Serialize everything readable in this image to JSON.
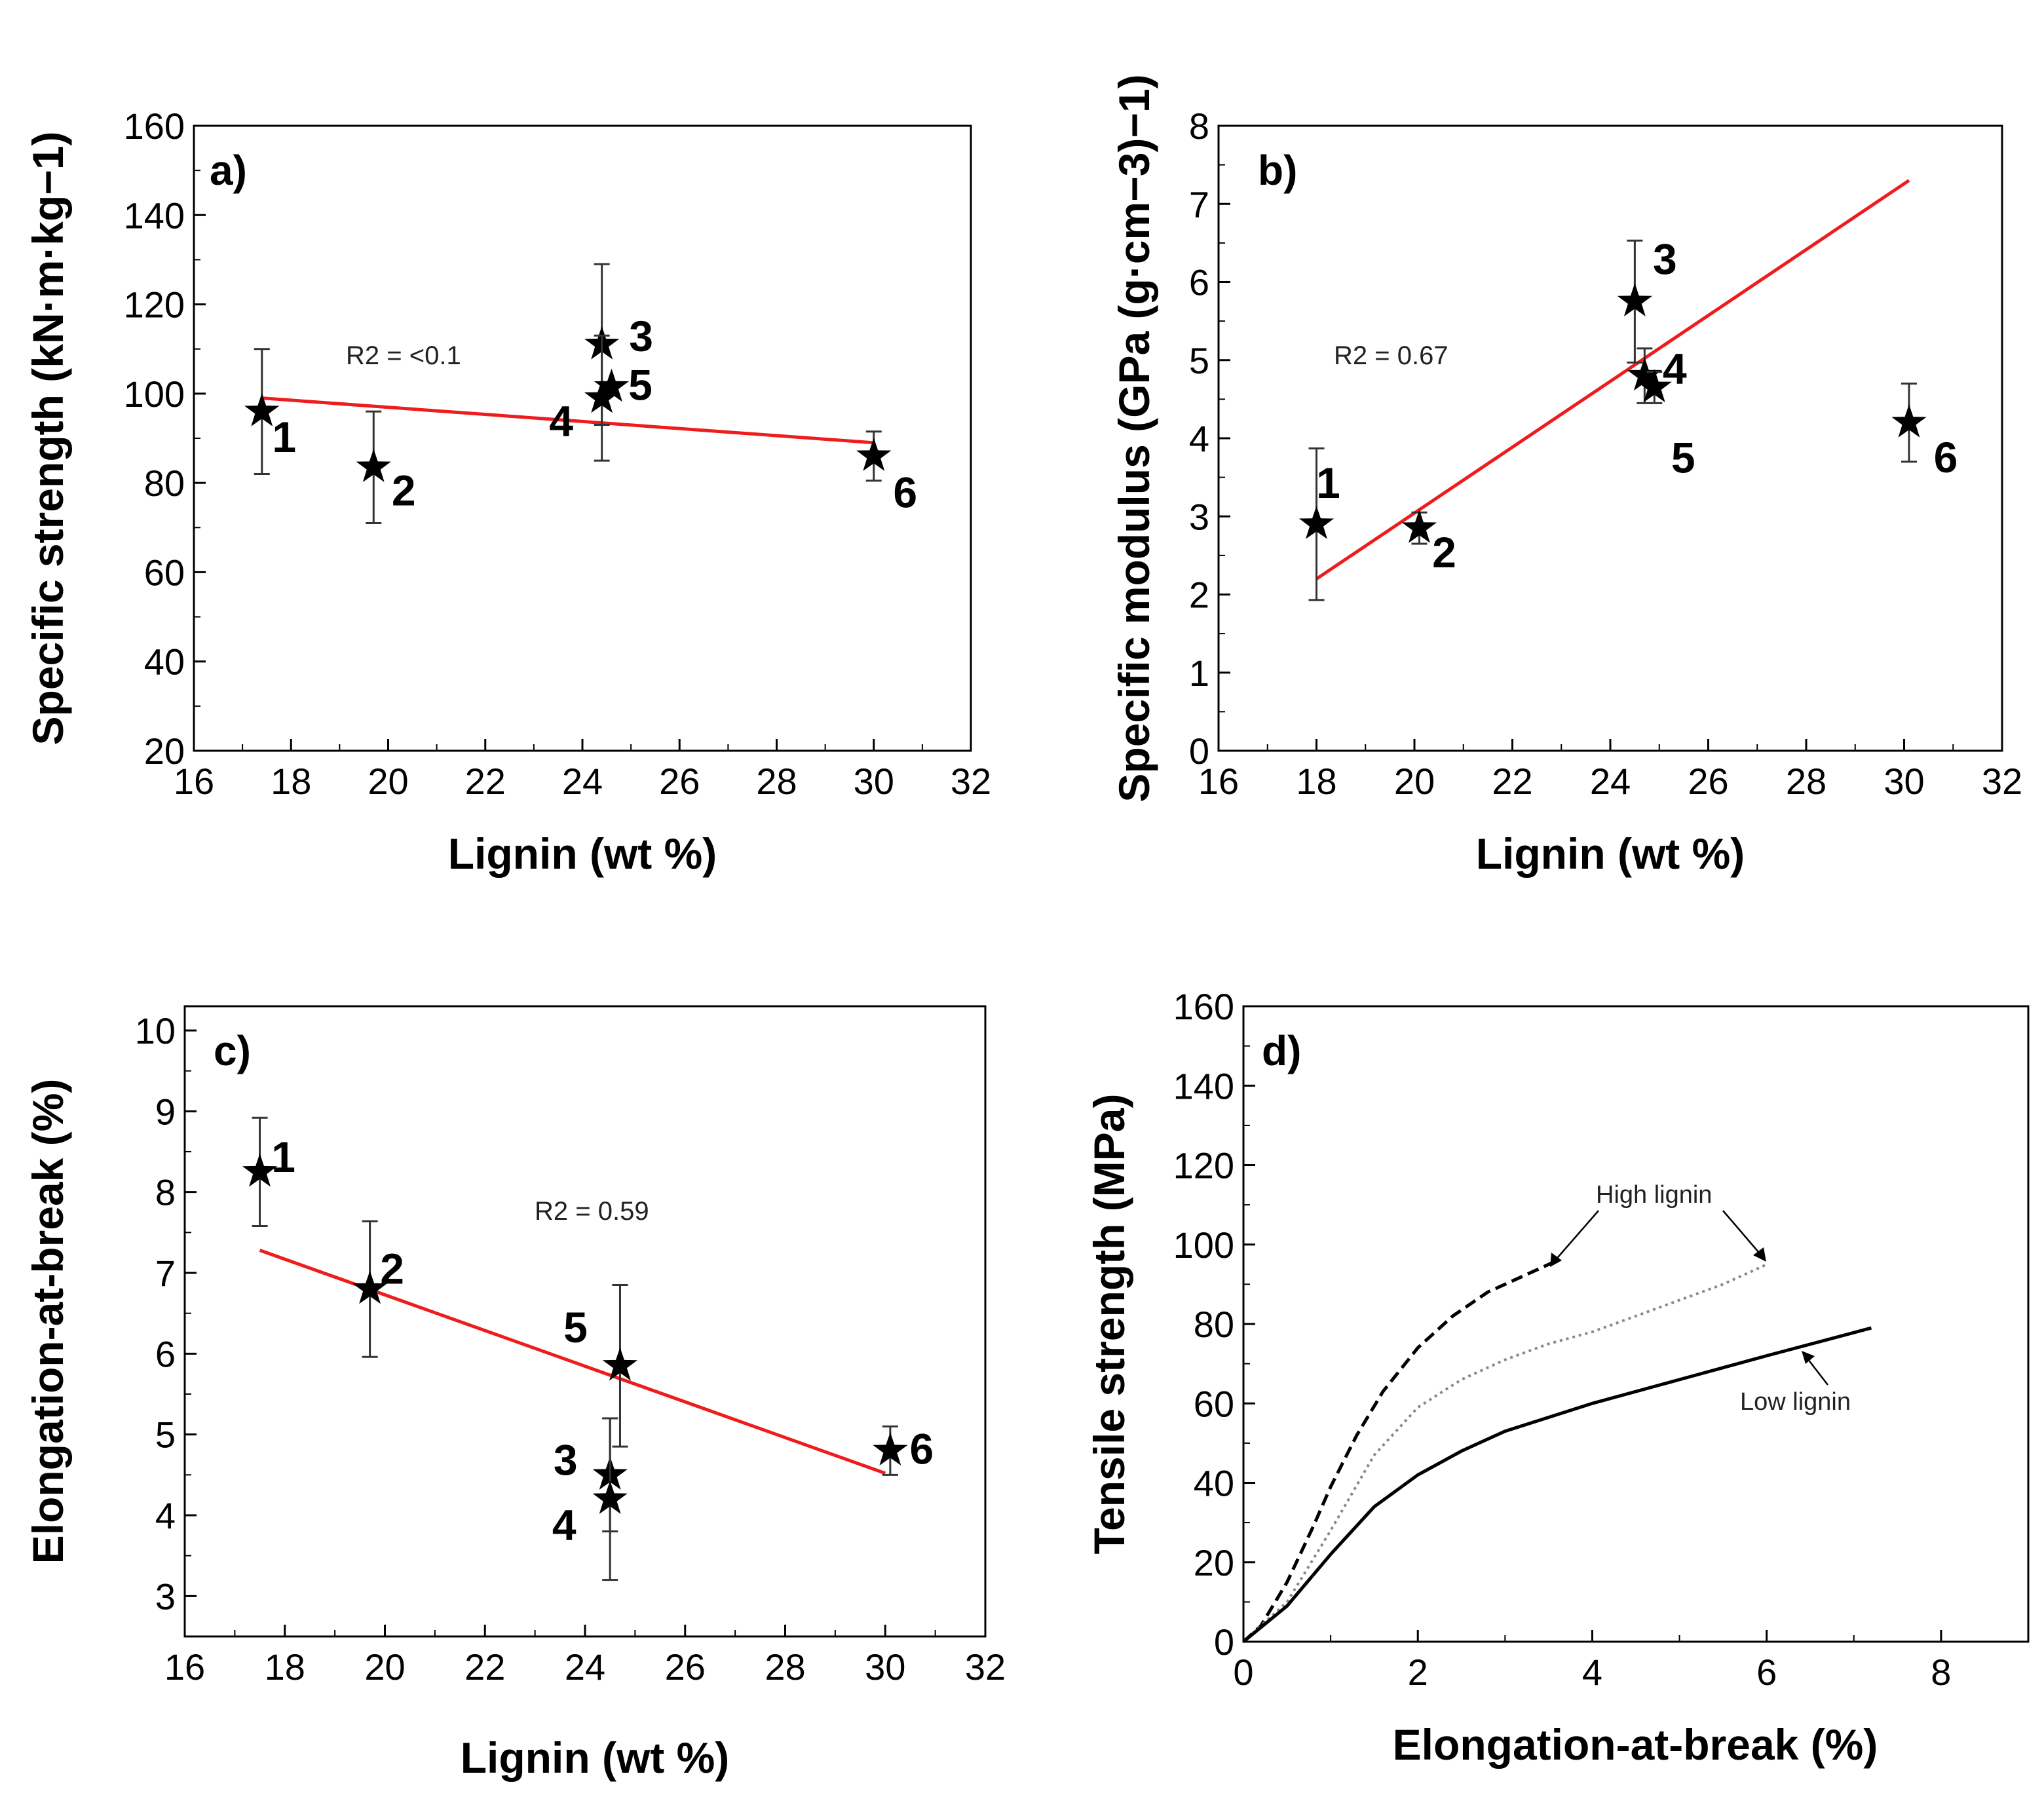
{
  "chart_data": [
    {
      "panel": "a)",
      "type": "scatter",
      "xlabel": "Lignin (wt %)",
      "ylabel": "Specific strength (kN·m·kg−1)",
      "xlim": [
        16,
        32
      ],
      "ylim": [
        20,
        160
      ],
      "xticks": [
        "16",
        "18",
        "20",
        "22",
        "24",
        "26",
        "28",
        "30",
        "32"
      ],
      "yticks": [
        "20",
        "40",
        "60",
        "80",
        "100",
        "120",
        "140",
        "160"
      ],
      "r2": "R2 = <0.1",
      "points": [
        {
          "label": "1",
          "x": 17.4,
          "y": 96,
          "err": 14
        },
        {
          "label": "2",
          "x": 19.7,
          "y": 83.5,
          "err": 12.5
        },
        {
          "label": "3",
          "x": 24.4,
          "y": 111,
          "err": 18
        },
        {
          "label": "4",
          "x": 24.4,
          "y": 99,
          "err": 14
        },
        {
          "label": "5",
          "x": 24.6,
          "y": 101.5,
          "err": 0
        },
        {
          "label": "6",
          "x": 30,
          "y": 86,
          "err": 5.5
        }
      ],
      "fit": {
        "x": [
          17.4,
          30
        ],
        "y": [
          99,
          89
        ]
      }
    },
    {
      "panel": "b)",
      "type": "scatter",
      "xlabel": "Lignin (wt %)",
      "ylabel": "Specific modulus (GPa (g·cm−3)−1)",
      "xlim": [
        16,
        32
      ],
      "ylim": [
        0,
        8
      ],
      "xticks": [
        "16",
        "18",
        "20",
        "22",
        "24",
        "26",
        "28",
        "30",
        "32"
      ],
      "yticks": [
        "0",
        "1",
        "2",
        "3",
        "4",
        "5",
        "6",
        "7",
        "8"
      ],
      "r2": "R2 = 0.67",
      "points": [
        {
          "label": "1",
          "x": 18,
          "y": 2.9,
          "err": 0.97
        },
        {
          "label": "2",
          "x": 20.1,
          "y": 2.85,
          "err": 0.2
        },
        {
          "label": "3",
          "x": 24.5,
          "y": 5.75,
          "err": 0.78
        },
        {
          "label": "4",
          "x": 24.7,
          "y": 4.8,
          "err": 0.35
        },
        {
          "label": "5",
          "x": 24.9,
          "y": 4.65,
          "err": 0.2
        },
        {
          "label": "6",
          "x": 30.1,
          "y": 4.2,
          "err": 0.5
        }
      ],
      "fit": {
        "x": [
          18,
          30.1
        ],
        "y": [
          2.2,
          7.3
        ]
      }
    },
    {
      "panel": "c)",
      "type": "scatter",
      "xlabel": "Lignin (wt %)",
      "ylabel": "Elongation-at-break (%)",
      "xlim": [
        16,
        32
      ],
      "ylim": [
        2.5,
        10.3
      ],
      "xticks": [
        "16",
        "18",
        "20",
        "22",
        "24",
        "26",
        "28",
        "30",
        "32"
      ],
      "yticks": [
        "3",
        "4",
        "5",
        "6",
        "7",
        "8",
        "9",
        "10"
      ],
      "r2": "R2 = 0.59",
      "points": [
        {
          "label": "1",
          "x": 17.5,
          "y": 8.25,
          "err": 0.67
        },
        {
          "label": "2",
          "x": 19.7,
          "y": 6.8,
          "err": 0.84
        },
        {
          "label": "3",
          "x": 24.5,
          "y": 4.5,
          "err": 0.7
        },
        {
          "label": "4",
          "x": 24.5,
          "y": 4.2,
          "err": 1.0
        },
        {
          "label": "5",
          "x": 24.7,
          "y": 5.85,
          "err": 1.0
        },
        {
          "label": "6",
          "x": 30.1,
          "y": 4.8,
          "err": 0.3
        }
      ],
      "fit": {
        "x": [
          17.5,
          30
        ],
        "y": [
          7.28,
          4.52
        ]
      }
    },
    {
      "panel": "d)",
      "type": "line",
      "xlabel": "Elongation-at-break (%)",
      "ylabel": "Tensile strength (MPa)",
      "xlim": [
        0,
        9
      ],
      "ylim": [
        0,
        160
      ],
      "xticks": [
        "0",
        "2",
        "4",
        "6",
        "8"
      ],
      "yticks": [
        "0",
        "20",
        "40",
        "60",
        "80",
        "100",
        "120",
        "140",
        "160"
      ],
      "series": [
        {
          "name": "High lignin (dashed)",
          "style": "dashed",
          "x": [
            0,
            0.2,
            0.5,
            0.8,
            1.0,
            1.3,
            1.6,
            2.0,
            2.4,
            2.8,
            3.2,
            3.6
          ],
          "y": [
            0,
            4,
            15,
            29,
            39,
            52,
            63,
            74,
            82,
            88,
            92,
            96
          ]
        },
        {
          "name": "High lignin (dotted)",
          "style": "dotted",
          "x": [
            0,
            0.5,
            1.0,
            1.5,
            2.0,
            2.5,
            3.0,
            3.5,
            4.0,
            4.5,
            5.0,
            5.5,
            6.0
          ],
          "y": [
            0,
            10,
            28,
            47,
            59,
            66,
            71,
            75,
            78,
            82,
            86,
            90,
            95
          ]
        },
        {
          "name": "Low lignin",
          "style": "solid",
          "x": [
            0,
            0.5,
            1.0,
            1.5,
            2.0,
            2.5,
            3.0,
            4.0,
            5.0,
            6.0,
            7.2
          ],
          "y": [
            0,
            9,
            22,
            34,
            42,
            48,
            53,
            60,
            66,
            72,
            79
          ]
        }
      ],
      "annotations": [
        "High lignin",
        "Low lignin"
      ]
    }
  ]
}
